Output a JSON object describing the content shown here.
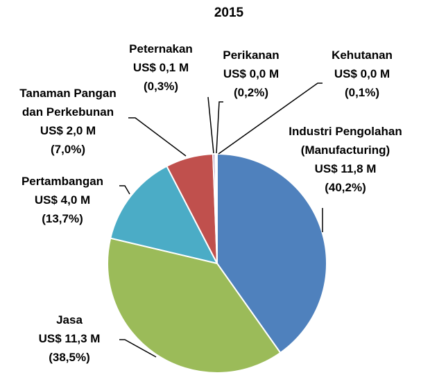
{
  "chart_data": {
    "type": "pie",
    "title": "2015",
    "categories": [
      "Industri Pengolahan\n(Manufacturing)",
      "Jasa",
      "Pertambangan",
      "Tanaman Pangan\ndan Perkebunan",
      "Peternakan",
      "Perikanan",
      "Kehutanan"
    ],
    "amount_labels": [
      "US$ 11,8 M",
      "US$ 11,3 M",
      "US$ 4,0 M",
      "US$ 2,0 M",
      "US$ 0,1 M",
      "US$ 0,0 M",
      "US$ 0,0 M"
    ],
    "values": [
      40.2,
      38.5,
      13.7,
      7.0,
      0.3,
      0.2,
      0.1
    ],
    "value_labels": [
      "(40,2%)",
      "(38,5%)",
      "(13,7%)",
      "(7,0%)",
      "(0,3%)",
      "(0,2%)",
      "(0,1%)"
    ],
    "colors": [
      "#4f81bd",
      "#9bbb59",
      "#4bacc6",
      "#c0504d",
      "#8064a2",
      "#f79646",
      "#2c4d75"
    ]
  }
}
